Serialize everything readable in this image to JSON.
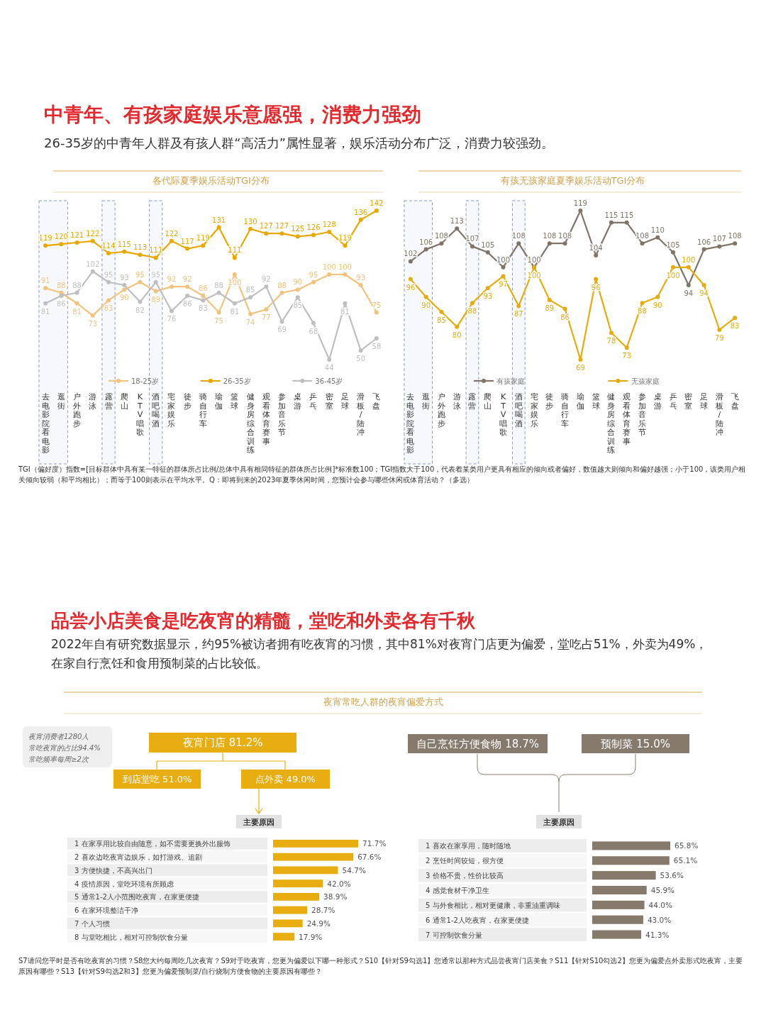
{
  "chart_data": [
    {
      "type": "other",
      "title": "中青年、有孩家庭娱乐意愿强，消费力强劲",
      "subtitle": "26-35岁的中青年人群及有孩人群“高活力”属性显著，娱乐活动分布广泛，消费力较强劲。",
      "annotations": [
        "TGI（偏好度）指数=[目标群体中具有某一特征的群体所占比例/总体中具有相同特征的群体所占比例]*标准数100；TGI指数大于100，代表着某类用户更具有相应的倾向或者偏好，数值越大则倾向和偏好越强；小于100，该类用户相关倾向较弱（和平均相比）；而等于100则表示在平均水平。Q：即将到来的2023年夏季休闲时间，您预计会参与哪些休闲或体育活动？（多选）"
      ]
    },
    {
      "type": "line",
      "title": "各代际夏季娱乐活动TGI分布",
      "categories": [
        "去电影院看电影",
        "逛街",
        "户外跑步",
        "游泳",
        "露营",
        "爬山",
        "KTV唱歌",
        "酒吧喝酒",
        "宅家娱乐",
        "徒步",
        "骑自行车",
        "瑜伽",
        "篮球",
        "健身房综合训练",
        "观看体育赛事",
        "参加音乐节",
        "桌游",
        "乒乓",
        "密室",
        "足球",
        "滑板/陆冲",
        "飞盘"
      ],
      "series": [
        {
          "name": "18-25岁",
          "color": "#F2C27E",
          "values": [
            91,
            88,
            81,
            73,
            83,
            90,
            95,
            89,
            92,
            92,
            86,
            75,
            100,
            74,
            77,
            88,
            90,
            95,
            100,
            100,
            93,
            75
          ]
        },
        {
          "name": "26-35岁",
          "color": "#E8A800",
          "values": [
            119,
            120,
            121,
            122,
            114,
            115,
            113,
            111,
            122,
            117,
            119,
            131,
            111,
            130,
            127,
            127,
            125,
            126,
            128,
            119,
            136,
            142
          ]
        },
        {
          "name": "36-45岁",
          "color": "#BFBFBF",
          "values": [
            81,
            86,
            88,
            102,
            95,
            93,
            82,
            95,
            76,
            86,
            83,
            88,
            81,
            85,
            92,
            69,
            85,
            68,
            44,
            81,
            50,
            58
          ]
        }
      ],
      "marker": "circle",
      "data_labels": true,
      "legend": "bottom",
      "bands": [
        {
          "axis": "x",
          "from": "去电影院看电影",
          "to": "逛街",
          "color": "#8A9BC4"
        },
        {
          "axis": "x",
          "from": "露营",
          "to": "露营",
          "color": "#8A9BC4"
        },
        {
          "axis": "x",
          "from": "酒吧喝酒",
          "to": "酒吧喝酒",
          "color": "#8A9BC4"
        }
      ]
    },
    {
      "type": "line",
      "title": "有孩无孩家庭夏季娱乐活动TGI分布",
      "categories": [
        "去电影院看电影",
        "逛街",
        "户外跑步",
        "游泳",
        "露营",
        "爬山",
        "KTV唱歌",
        "酒吧喝酒",
        "宅家娱乐",
        "徒步",
        "骑自行车",
        "瑜伽",
        "篮球",
        "健身房综合训练",
        "观看体育赛事",
        "参加音乐节",
        "桌游",
        "乒乓",
        "密室",
        "足球",
        "滑板/陆冲",
        "飞盘"
      ],
      "series": [
        {
          "name": "有孩家庭",
          "color": "#7F7467",
          "values": [
            102,
            106,
            108,
            113,
            107,
            105,
            100,
            108,
            100,
            108,
            108,
            119,
            104,
            115,
            115,
            108,
            110,
            105,
            94,
            106,
            107,
            108
          ]
        },
        {
          "name": "无孩家庭",
          "color": "#E5AC12",
          "values": [
            96,
            90,
            85,
            80,
            88,
            93,
            97,
            87,
            100,
            89,
            86,
            69,
            96,
            78,
            73,
            88,
            90,
            100,
            100,
            94,
            79,
            83
          ]
        }
      ],
      "marker": "circle",
      "data_labels": true,
      "legend": "bottom",
      "bands": [
        {
          "axis": "x",
          "from": "去电影院看电影",
          "to": "逛街",
          "color": "#8A9BC4"
        },
        {
          "axis": "x",
          "from": "露营",
          "to": "露营",
          "color": "#8A9BC4"
        },
        {
          "axis": "x",
          "from": "酒吧喝酒",
          "to": "酒吧喝酒",
          "color": "#8A9BC4"
        }
      ]
    },
    {
      "type": "other",
      "title": "品尝小店美食是吃夜宵的精髓，堂吃和外卖各有千秋",
      "subtitle": "2022年自有研究数据显示，约95%被访者拥有吃夜宵的习惯，其中81%对夜宵门店更为偏爱，堂吃占51%，外卖为49%，在家自行烹饪和食用预制菜的占比较低。",
      "annotations": [
        "S7请问您平时是否有吃夜宵的习惯？S8您大约每周吃几次夜宵？S9对于吃夜宵，您更为偏爱以下哪一种形式？S10【针对S9勾选1】您通常以那种方式品尝夜宵门店美食？S11【针对S10勾选2】您更为偏爱点外卖形式吃夜宵，主要原因有哪些？S13【针对S9勾选2和3】您更为偏爱预制菜/自行烧制方便食物的主要原因有哪些？"
      ]
    },
    {
      "type": "other",
      "title": "夜宵常吃人群的夜宵偏爱方式",
      "categories": [
        "夜宵门店",
        "到店堂吃",
        "点外卖",
        "自己烹饪方便食物",
        "预制菜"
      ],
      "values": [
        81.2,
        51.0,
        49.0,
        18.7,
        15.0
      ],
      "value_labels": [
        "81.2%",
        "51.0%",
        "49.0%",
        "18.7%",
        "15.0%"
      ],
      "colors": [
        "#E8AD10",
        "#E8AD10",
        "#E8AD10",
        "#857A6B",
        "#857A6B"
      ],
      "annotations": [
        "夜宵消费者1280人",
        "常吃夜宵的占比94.4%",
        "常吃频率每周≥2次",
        "主要原因",
        "主要原因"
      ]
    },
    {
      "type": "bar",
      "orientation": "horizontal",
      "categories": [
        "1 在家享用比较自由随意，如不需要更换外出服饰",
        "2 喜欢边吃夜宵边娱乐，如打游戏、追剧",
        "3 方便快捷，不高兴出门",
        "4 疫情原因，堂吃环境有所顾虑",
        "5 通常1-2人小范围吃夜宵，在家更便捷",
        "6 在家环境整洁干净",
        "7 个人习惯",
        "8 与堂吃相比，相对可控制饮食分量"
      ],
      "values": [
        71.7,
        67.6,
        54.7,
        42.0,
        38.9,
        28.7,
        24.9,
        17.9
      ],
      "value_labels": [
        "71.7%",
        "67.6%",
        "54.7%",
        "42.0%",
        "38.9%",
        "28.7%",
        "24.9%",
        "17.9%"
      ],
      "color": "#E8AD10"
    },
    {
      "type": "bar",
      "orientation": "horizontal",
      "categories": [
        "1 喜欢在家享用，随时随地",
        "2 烹饪时间较短，很方便",
        "3 价格不贵，性价比较高",
        "4 感觉食材干净卫生",
        "5 与外食相比，相对更健康，非重油重调味",
        "6 通常1-2人吃夜宵，在家更便捷",
        "7 可控制饮食分量"
      ],
      "values": [
        65.8,
        65.1,
        53.6,
        45.9,
        44.0,
        43.0,
        41.3
      ],
      "value_labels": [
        "65.8%",
        "65.1%",
        "53.6%",
        "45.9%",
        "44.0%",
        "43.0%",
        "41.3%"
      ],
      "color": "#857A6B"
    }
  ]
}
